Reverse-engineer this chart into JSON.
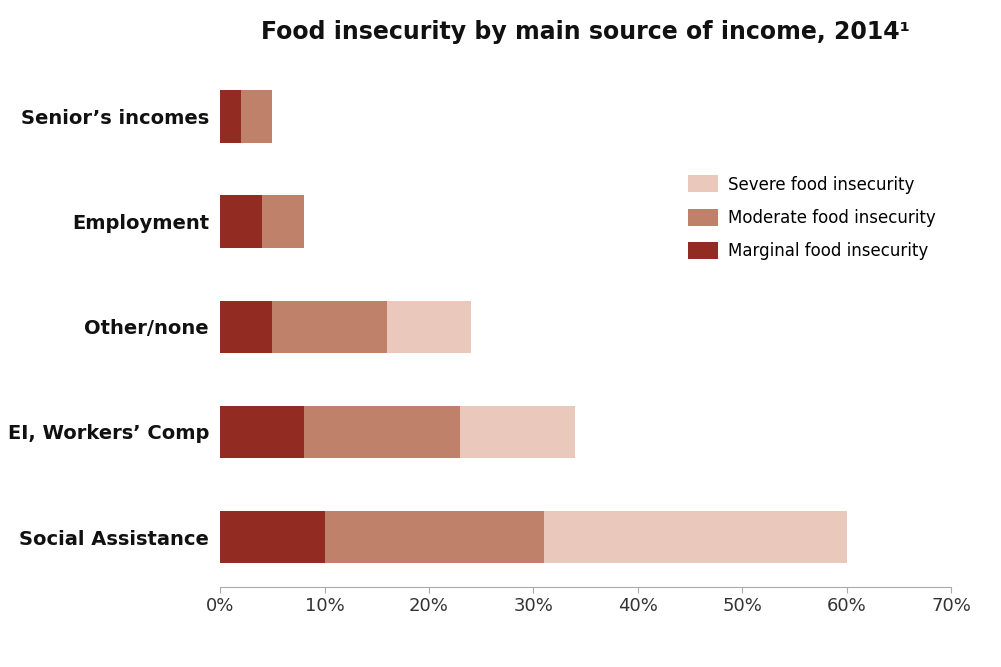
{
  "title": "Food insecurity by main source of income, 2014¹",
  "categories": [
    "Social Assistance",
    "EI, Workers’ Comp",
    "Other/none",
    "Employment",
    "Senior’s incomes"
  ],
  "marginal": [
    10,
    8,
    5,
    4,
    2
  ],
  "moderate": [
    21,
    15,
    11,
    4,
    3
  ],
  "severe": [
    29,
    11,
    8,
    0,
    0
  ],
  "color_marginal": "#922B21",
  "color_moderate": "#C0816A",
  "color_severe": "#EAC8BC",
  "xlim": [
    0,
    70
  ],
  "xtick_labels": [
    "0%",
    "10%",
    "20%",
    "30%",
    "40%",
    "50%",
    "60%",
    "70%"
  ],
  "xtick_values": [
    0,
    10,
    20,
    30,
    40,
    50,
    60,
    70
  ],
  "legend_labels": [
    "Severe food insecurity",
    "Moderate food insecurity",
    "Marginal food insecurity"
  ],
  "legend_colors": [
    "#EAC8BC",
    "#C0816A",
    "#922B21"
  ],
  "bar_height": 0.5,
  "figsize": [
    10.01,
    6.67
  ],
  "dpi": 100
}
